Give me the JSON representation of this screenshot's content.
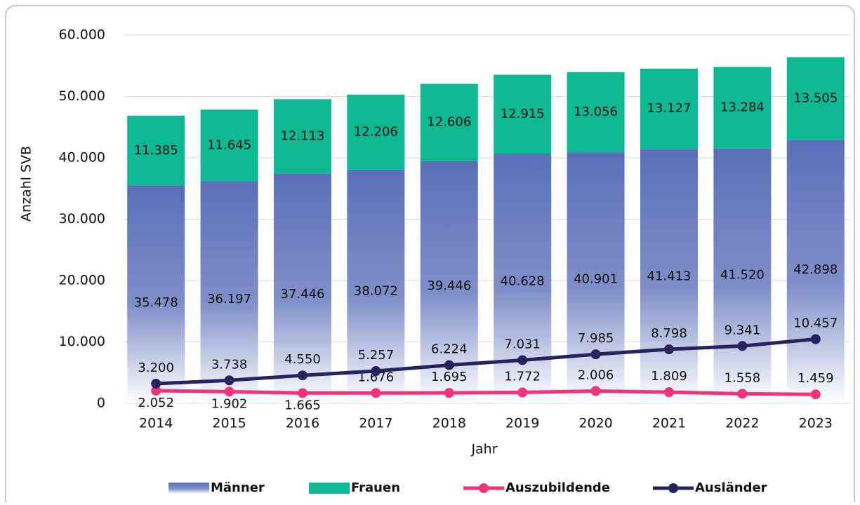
{
  "chart_data": {
    "type": "bar",
    "stacked": true,
    "x_label": "Jahr",
    "y_label": "Anzahl SVB",
    "categories": [
      "2014",
      "2015",
      "2016",
      "2017",
      "2018",
      "2019",
      "2020",
      "2021",
      "2022",
      "2023"
    ],
    "ylim": [
      0,
      60000
    ],
    "yticks": [
      0,
      {
        "value": 10000,
        "label": "10.000"
      },
      {
        "value": 20000,
        "label": "20.000"
      },
      {
        "value": 30000,
        "label": "30.000"
      },
      {
        "value": 40000,
        "label": "40.000"
      },
      {
        "value": 50000,
        "label": "50.000"
      },
      {
        "value": 60000,
        "label": "60.000"
      }
    ],
    "grid": true,
    "legend": "bottom",
    "series": [
      {
        "name": "Männer",
        "type": "bar",
        "color": "#5a6fb8",
        "values": [
          35478,
          36197,
          37446,
          38072,
          39446,
          40628,
          40901,
          41413,
          41520,
          42898
        ],
        "value_labels": [
          "35.478",
          "36.197",
          "37.446",
          "38.072",
          "39.446",
          "40.628",
          "40.901",
          "41.413",
          "41.520",
          "42.898"
        ]
      },
      {
        "name": "Frauen",
        "type": "bar",
        "color": "#0db893",
        "values": [
          11385,
          11645,
          12113,
          12206,
          12606,
          12915,
          13056,
          13127,
          13284,
          13505
        ],
        "value_labels": [
          "11.385",
          "11.645",
          "12.113",
          "12.206",
          "12.606",
          "12.915",
          "13.056",
          "13.127",
          "13.284",
          "13.505"
        ]
      },
      {
        "name": "Auszubildende",
        "type": "line",
        "color": "#ef3479",
        "values": [
          2052,
          1902,
          1665,
          1676,
          1695,
          1772,
          2006,
          1809,
          1558,
          1459
        ],
        "value_labels": [
          "2.052",
          "1.902",
          "1.665",
          "1.676",
          "1.695",
          "1.772",
          "2.006",
          "1.809",
          "1.558",
          "1.459"
        ]
      },
      {
        "name": "Ausländer",
        "type": "line",
        "color": "#27235c",
        "values": [
          3200,
          3738,
          4550,
          5257,
          6224,
          7031,
          7985,
          8798,
          9341,
          10457
        ],
        "value_labels": [
          "3.200",
          "3.738",
          "4.550",
          "5.257",
          "6.224",
          "7.031",
          "7.985",
          "8.798",
          "9.341",
          "10.457"
        ]
      }
    ]
  }
}
